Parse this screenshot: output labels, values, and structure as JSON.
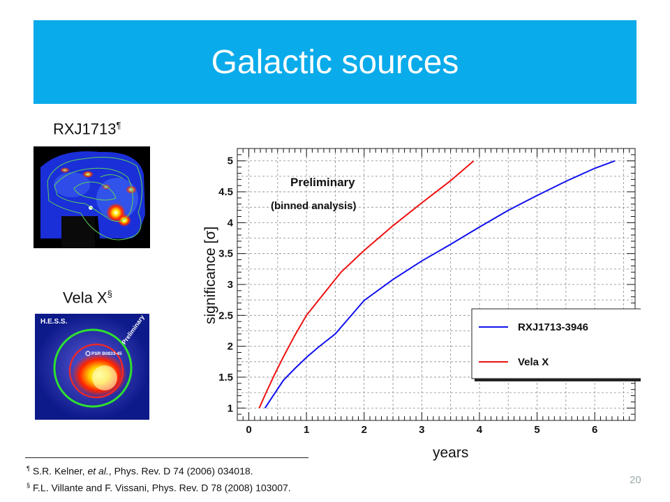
{
  "slide": {
    "title": "Galactic sources",
    "page_number": "20",
    "accent_color": "#0aabea"
  },
  "images": {
    "rxj": {
      "label": "RXJ1713",
      "mark": "¶"
    },
    "vela": {
      "label": "Vela X",
      "mark": "§",
      "overlay_title": "H.E.S.S.",
      "overlay_note": "Preliminary",
      "pulsar_label": "PSR B0833-45"
    }
  },
  "footnotes": [
    {
      "mark": "¶",
      "pre": "S.R. Kelner, ",
      "italic": "et al.",
      "post": ", Phys. Rev. D 74 (2006) 034018."
    },
    {
      "mark": "§",
      "pre": "F.L. Villante and F. Vissani, Phys. Rev. D 78 (2008) 103007.",
      "italic": "",
      "post": ""
    }
  ],
  "chart_data": {
    "type": "line",
    "xlabel": "years",
    "ylabel": "significance [σ]",
    "xlim": [
      -0.2,
      6.7
    ],
    "ylim": [
      0.8,
      5.2
    ],
    "x_ticks": [
      "0",
      "1",
      "2",
      "3",
      "4",
      "5",
      "6"
    ],
    "y_ticks": [
      "1",
      "1.5",
      "2",
      "2.5",
      "3",
      "3.5",
      "4",
      "4.5",
      "5"
    ],
    "grid": true,
    "legend": "right",
    "annotations": [
      "Preliminary",
      "(binned analysis)"
    ],
    "series": [
      {
        "name": "RXJ1713-3946",
        "color": "#1010ee",
        "x": [
          0.28,
          0.4,
          0.6,
          0.8,
          1.0,
          1.2,
          1.5,
          2.0,
          2.5,
          3.0,
          3.5,
          4.0,
          4.5,
          5.0,
          5.5,
          6.0,
          6.35
        ],
        "y": [
          1.0,
          1.17,
          1.45,
          1.64,
          1.82,
          1.98,
          2.2,
          2.74,
          3.08,
          3.38,
          3.65,
          3.93,
          4.2,
          4.44,
          4.67,
          4.88,
          5.0
        ]
      },
      {
        "name": "Vela X",
        "color": "#ee1010",
        "x": [
          0.18,
          0.3,
          0.45,
          0.6,
          0.8,
          1.0,
          1.3,
          1.6,
          2.0,
          2.5,
          3.0,
          3.5,
          3.9
        ],
        "y": [
          1.0,
          1.25,
          1.55,
          1.83,
          2.18,
          2.5,
          2.85,
          3.2,
          3.55,
          3.95,
          4.32,
          4.68,
          5.0
        ]
      }
    ]
  }
}
